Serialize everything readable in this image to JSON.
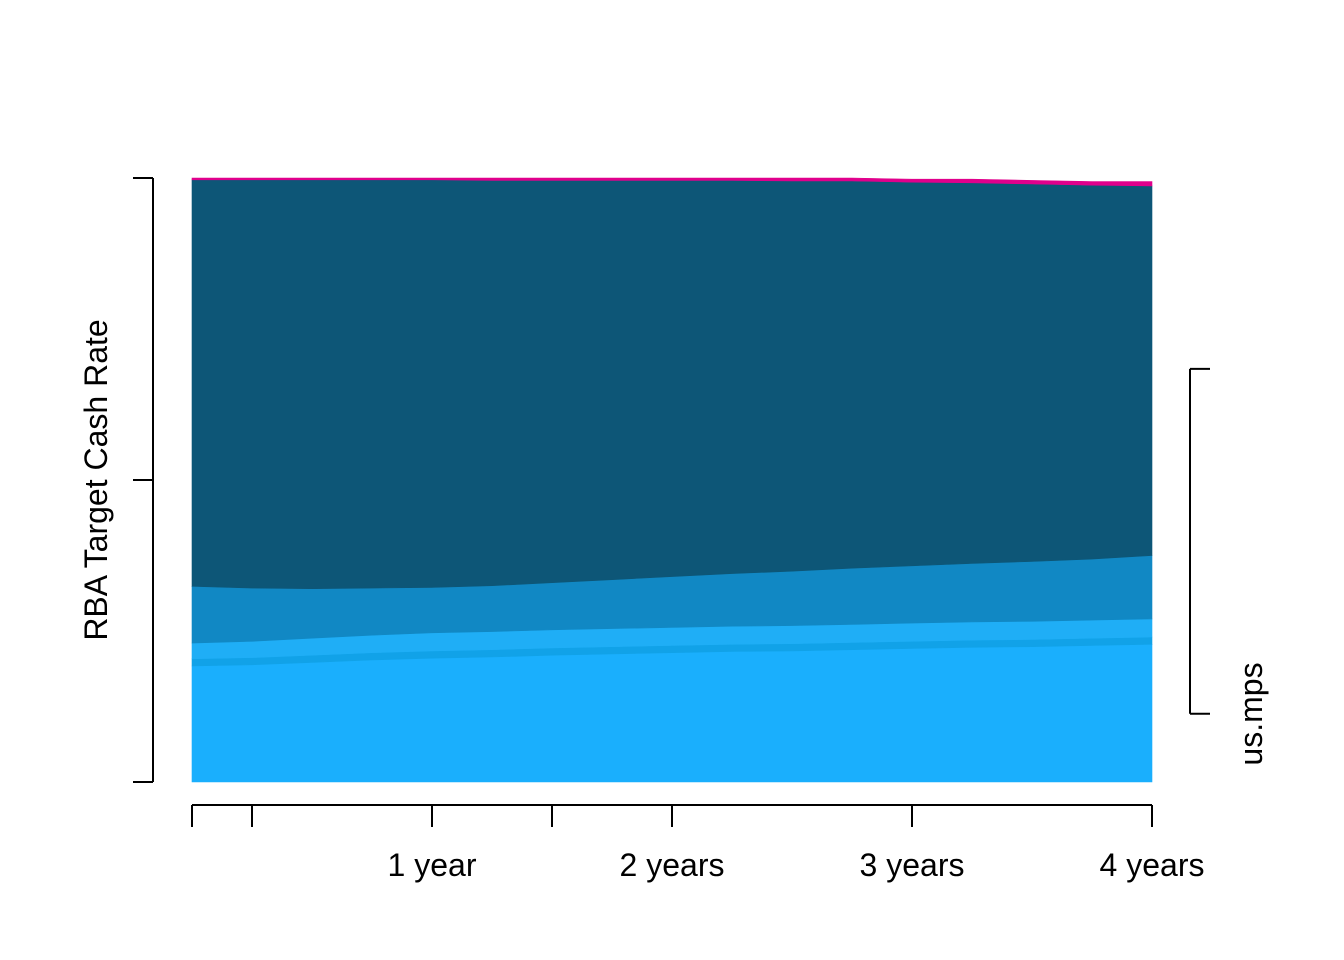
{
  "chart_data": {
    "type": "area",
    "stacked": true,
    "x_unit": "quarters",
    "x": [
      0,
      1,
      2,
      3,
      4,
      5,
      6,
      7,
      8,
      9,
      10,
      11,
      12,
      13,
      14,
      15,
      16
    ],
    "xlim": [
      0,
      16
    ],
    "x_ticks": [
      0,
      1,
      4,
      6,
      8,
      12,
      16
    ],
    "x_tick_labels": [
      {
        "value": 4,
        "label": "1 year"
      },
      {
        "value": 8,
        "label": "2 years"
      },
      {
        "value": 12,
        "label": "3 years"
      },
      {
        "value": 16,
        "label": "4 years"
      }
    ],
    "ylim": [
      0,
      1
    ],
    "left_axis_ticks": [
      0,
      0.5,
      1
    ],
    "ylabel": "RBA Target Cash Rate",
    "right_axis_label": "us.mps",
    "right_axis_range": [
      0.113,
      0.684
    ],
    "grid": false,
    "legend": "none",
    "series": [
      {
        "color": "#1AAFFD",
        "values": [
          0.192,
          0.194,
          0.198,
          0.202,
          0.205,
          0.207,
          0.21,
          0.212,
          0.214,
          0.216,
          0.217,
          0.219,
          0.221,
          0.223,
          0.224,
          0.226,
          0.228
        ]
      },
      {
        "color": "#11A2E8",
        "values": [
          0.012,
          0.012,
          0.012,
          0.012,
          0.012,
          0.012,
          0.012,
          0.012,
          0.012,
          0.012,
          0.012,
          0.012,
          0.012,
          0.012,
          0.012,
          0.012,
          0.012
        ]
      },
      {
        "color": "#1FAEF6",
        "values": [
          0.026,
          0.027,
          0.028,
          0.029,
          0.03,
          0.03,
          0.03,
          0.03,
          0.03,
          0.03,
          0.03,
          0.03,
          0.03,
          0.03,
          0.03,
          0.03,
          0.03
        ]
      },
      {
        "color": "#1188C4",
        "values": [
          0.094,
          0.088,
          0.082,
          0.078,
          0.075,
          0.076,
          0.078,
          0.081,
          0.084,
          0.087,
          0.09,
          0.093,
          0.095,
          0.097,
          0.099,
          0.101,
          0.105
        ]
      },
      {
        "color": "#0D5677",
        "values": [
          0.673,
          0.676,
          0.677,
          0.676,
          0.675,
          0.671,
          0.666,
          0.661,
          0.656,
          0.651,
          0.646,
          0.641,
          0.635,
          0.63,
          0.625,
          0.619,
          0.612
        ]
      },
      {
        "color": "#E0008C",
        "values": [
          0.003,
          0.003,
          0.003,
          0.003,
          0.003,
          0.004,
          0.004,
          0.004,
          0.004,
          0.004,
          0.005,
          0.005,
          0.005,
          0.006,
          0.006,
          0.006,
          0.007
        ]
      }
    ]
  }
}
